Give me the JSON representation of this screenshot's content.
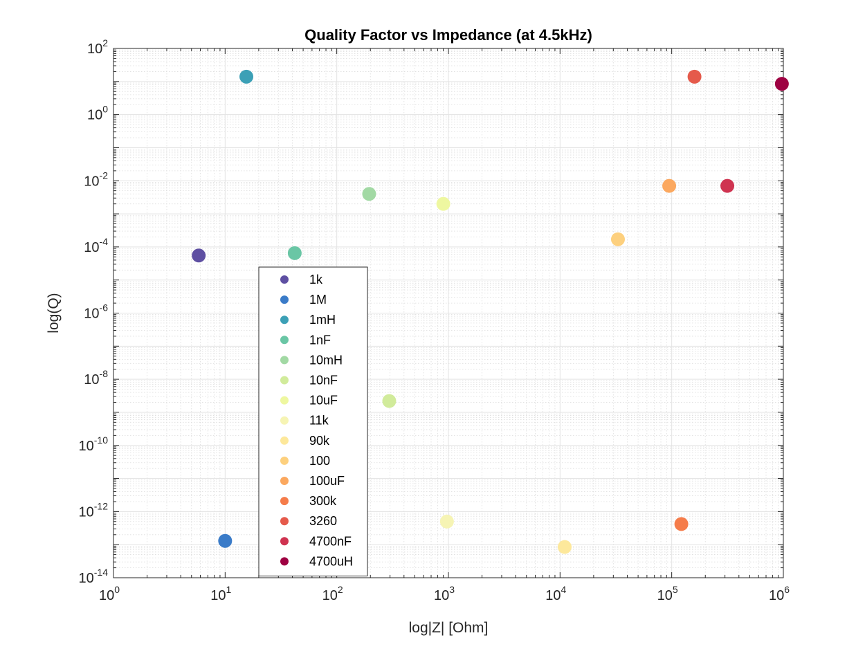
{
  "chart_data": {
    "type": "scatter",
    "title": "Quality Factor vs Impedance (at 4.5kHz)",
    "xlabel": "log|Z| [Ohm]",
    "ylabel": "log(Q)",
    "xscale": "log",
    "yscale": "log",
    "xlim": [
      1,
      1000000
    ],
    "ylim": [
      1e-14,
      100
    ],
    "xticks": [
      {
        "base": "10",
        "exp": "0",
        "value": 1
      },
      {
        "base": "10",
        "exp": "1",
        "value": 10
      },
      {
        "base": "10",
        "exp": "2",
        "value": 100
      },
      {
        "base": "10",
        "exp": "3",
        "value": 1000
      },
      {
        "base": "10",
        "exp": "4",
        "value": 10000
      },
      {
        "base": "10",
        "exp": "5",
        "value": 100000
      },
      {
        "base": "10",
        "exp": "6",
        "value": 1000000
      }
    ],
    "yticks": [
      {
        "base": "10",
        "exp": "-14",
        "value": 1e-14
      },
      {
        "base": "10",
        "exp": "-12",
        "value": 1e-12
      },
      {
        "base": "10",
        "exp": "-10",
        "value": 1e-10
      },
      {
        "base": "10",
        "exp": "-8",
        "value": 1e-08
      },
      {
        "base": "10",
        "exp": "-6",
        "value": 1e-06
      },
      {
        "base": "10",
        "exp": "-4",
        "value": 0.0001
      },
      {
        "base": "10",
        "exp": "-2",
        "value": 0.01
      },
      {
        "base": "10",
        "exp": "0",
        "value": 1
      },
      {
        "base": "10",
        "exp": "2",
        "value": 100
      }
    ],
    "grid": true,
    "minor_grid": true,
    "legend_position": "inside-left",
    "series": [
      {
        "name": "1k",
        "color": "#5e4fa2",
        "points": [
          {
            "x": 5.8,
            "y": 5.5e-05
          }
        ]
      },
      {
        "name": "1M",
        "color": "#3a7bc8",
        "points": [
          {
            "x": 10,
            "y": 1.3e-13
          }
        ]
      },
      {
        "name": "1mH",
        "color": "#3ca0b6",
        "points": [
          {
            "x": 15.5,
            "y": 14
          }
        ]
      },
      {
        "name": "1nF",
        "color": "#6ac6a5",
        "points": [
          {
            "x": 42,
            "y": 6.5e-05
          }
        ]
      },
      {
        "name": "10mH",
        "color": "#a2d9a4",
        "points": [
          {
            "x": 195,
            "y": 0.004
          }
        ]
      },
      {
        "name": "10nF",
        "color": "#d1eb9b",
        "points": [
          {
            "x": 295,
            "y": 2.2e-09
          }
        ]
      },
      {
        "name": "10uF",
        "color": "#eef7a0",
        "points": [
          {
            "x": 900,
            "y": 0.002
          }
        ]
      },
      {
        "name": "11k",
        "color": "#f6f4b4",
        "points": [
          {
            "x": 970,
            "y": 5e-13
          }
        ]
      },
      {
        "name": "90k",
        "color": "#fde89b",
        "points": [
          {
            "x": 11000,
            "y": 8.5e-14
          }
        ]
      },
      {
        "name": "100",
        "color": "#fdd07e",
        "points": [
          {
            "x": 33000,
            "y": 0.00017
          }
        ]
      },
      {
        "name": "100uF",
        "color": "#fba85f",
        "points": [
          {
            "x": 95000,
            "y": 0.007
          }
        ]
      },
      {
        "name": "300k",
        "color": "#f57c4a",
        "points": [
          {
            "x": 122000,
            "y": 4.2e-13
          }
        ]
      },
      {
        "name": "3260",
        "color": "#e55a4b",
        "points": [
          {
            "x": 160000,
            "y": 14
          }
        ]
      },
      {
        "name": "4700nF",
        "color": "#cf3350",
        "points": [
          {
            "x": 315000,
            "y": 0.007
          }
        ]
      },
      {
        "name": "4700uH",
        "color": "#9e0142",
        "points": [
          {
            "x": 970000,
            "y": 8.5
          }
        ]
      }
    ]
  }
}
